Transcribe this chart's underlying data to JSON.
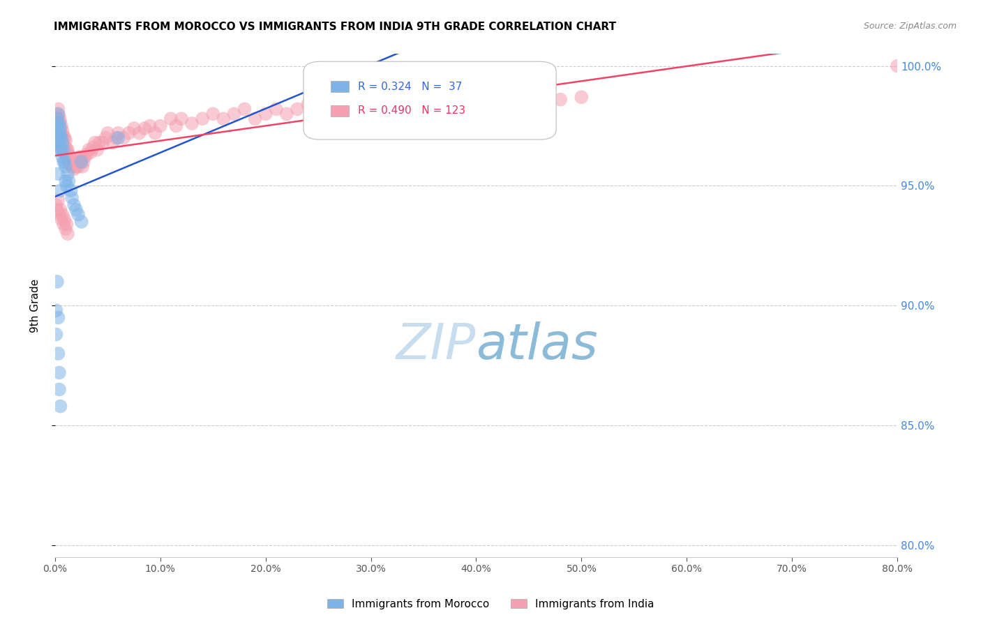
{
  "title": "IMMIGRANTS FROM MOROCCO VS IMMIGRANTS FROM INDIA 9TH GRADE CORRELATION CHART",
  "source": "Source: ZipAtlas.com",
  "ylabel": "9th Grade",
  "legend_morocco": "Immigrants from Morocco",
  "legend_india": "Immigrants from India",
  "r_morocco": 0.324,
  "n_morocco": 37,
  "r_india": 0.49,
  "n_india": 123,
  "color_morocco": "#7EB3E8",
  "color_india": "#F4A0B0",
  "trendline_morocco": "#2255CC",
  "trendline_india": "#EE4466",
  "background": "#FFFFFF",
  "xlim": [
    0.0,
    0.8
  ],
  "ylim": [
    0.795,
    1.005
  ],
  "yticks": [
    0.8,
    0.85,
    0.9,
    0.95,
    1.0
  ],
  "xticks": [
    0.0,
    0.1,
    0.2,
    0.3,
    0.4,
    0.5,
    0.6,
    0.7,
    0.8
  ],
  "morocco_x": [
    0.001,
    0.001,
    0.002,
    0.002,
    0.002,
    0.003,
    0.003,
    0.003,
    0.004,
    0.004,
    0.004,
    0.005,
    0.005,
    0.005,
    0.006,
    0.006,
    0.007,
    0.007,
    0.008,
    0.008,
    0.009,
    0.01,
    0.01,
    0.011,
    0.012,
    0.013,
    0.015,
    0.016,
    0.018,
    0.02,
    0.022,
    0.025,
    0.003,
    0.005,
    0.025,
    0.06,
    0.26
  ],
  "morocco_y": [
    0.975,
    0.968,
    0.978,
    0.972,
    0.965,
    0.98,
    0.975,
    0.97,
    0.976,
    0.972,
    0.968,
    0.974,
    0.971,
    0.966,
    0.97,
    0.965,
    0.968,
    0.962,
    0.965,
    0.96,
    0.96,
    0.958,
    0.952,
    0.95,
    0.955,
    0.952,
    0.948,
    0.945,
    0.942,
    0.94,
    0.938,
    0.935,
    0.955,
    0.948,
    0.96,
    0.97,
    0.99
  ],
  "morocco_x_low": [
    0.001,
    0.001,
    0.002,
    0.003,
    0.003,
    0.004,
    0.004,
    0.005
  ],
  "morocco_y_low": [
    0.898,
    0.888,
    0.91,
    0.895,
    0.88,
    0.872,
    0.865,
    0.858
  ],
  "india_x": [
    0.001,
    0.001,
    0.002,
    0.002,
    0.002,
    0.003,
    0.003,
    0.003,
    0.004,
    0.004,
    0.004,
    0.005,
    0.005,
    0.005,
    0.006,
    0.006,
    0.006,
    0.007,
    0.007,
    0.007,
    0.008,
    0.008,
    0.009,
    0.009,
    0.01,
    0.01,
    0.01,
    0.011,
    0.011,
    0.012,
    0.012,
    0.013,
    0.013,
    0.014,
    0.014,
    0.015,
    0.015,
    0.016,
    0.016,
    0.017,
    0.018,
    0.018,
    0.019,
    0.02,
    0.02,
    0.021,
    0.022,
    0.023,
    0.024,
    0.025,
    0.026,
    0.027,
    0.028,
    0.03,
    0.032,
    0.034,
    0.036,
    0.038,
    0.04,
    0.042,
    0.045,
    0.048,
    0.05,
    0.055,
    0.058,
    0.06,
    0.065,
    0.07,
    0.075,
    0.08,
    0.085,
    0.09,
    0.095,
    0.1,
    0.11,
    0.115,
    0.12,
    0.13,
    0.14,
    0.15,
    0.16,
    0.17,
    0.18,
    0.19,
    0.2,
    0.21,
    0.22,
    0.23,
    0.24,
    0.25,
    0.26,
    0.27,
    0.28,
    0.29,
    0.3,
    0.31,
    0.32,
    0.33,
    0.34,
    0.35,
    0.36,
    0.37,
    0.38,
    0.39,
    0.4,
    0.42,
    0.44,
    0.46,
    0.48,
    0.5,
    0.001,
    0.002,
    0.003,
    0.004,
    0.005,
    0.006,
    0.007,
    0.008,
    0.009,
    0.01,
    0.011,
    0.012,
    0.8
  ],
  "india_y": [
    0.978,
    0.972,
    0.98,
    0.975,
    0.97,
    0.982,
    0.978,
    0.974,
    0.979,
    0.975,
    0.971,
    0.977,
    0.974,
    0.97,
    0.975,
    0.971,
    0.968,
    0.973,
    0.97,
    0.966,
    0.971,
    0.968,
    0.97,
    0.966,
    0.969,
    0.966,
    0.963,
    0.965,
    0.962,
    0.965,
    0.962,
    0.963,
    0.96,
    0.962,
    0.959,
    0.962,
    0.959,
    0.96,
    0.958,
    0.96,
    0.96,
    0.957,
    0.958,
    0.96,
    0.958,
    0.96,
    0.958,
    0.962,
    0.96,
    0.962,
    0.958,
    0.96,
    0.962,
    0.963,
    0.965,
    0.964,
    0.966,
    0.968,
    0.965,
    0.968,
    0.968,
    0.97,
    0.972,
    0.968,
    0.97,
    0.972,
    0.97,
    0.972,
    0.974,
    0.972,
    0.974,
    0.975,
    0.972,
    0.975,
    0.978,
    0.975,
    0.978,
    0.976,
    0.978,
    0.98,
    0.978,
    0.98,
    0.982,
    0.978,
    0.98,
    0.982,
    0.98,
    0.982,
    0.984,
    0.982,
    0.984,
    0.982,
    0.984,
    0.985,
    0.982,
    0.984,
    0.985,
    0.982,
    0.984,
    0.985,
    0.984,
    0.985,
    0.986,
    0.984,
    0.985,
    0.986,
    0.985,
    0.986,
    0.986,
    0.987,
    0.942,
    0.94,
    0.944,
    0.938,
    0.94,
    0.936,
    0.938,
    0.934,
    0.936,
    0.932,
    0.934,
    0.93,
    1.0
  ]
}
